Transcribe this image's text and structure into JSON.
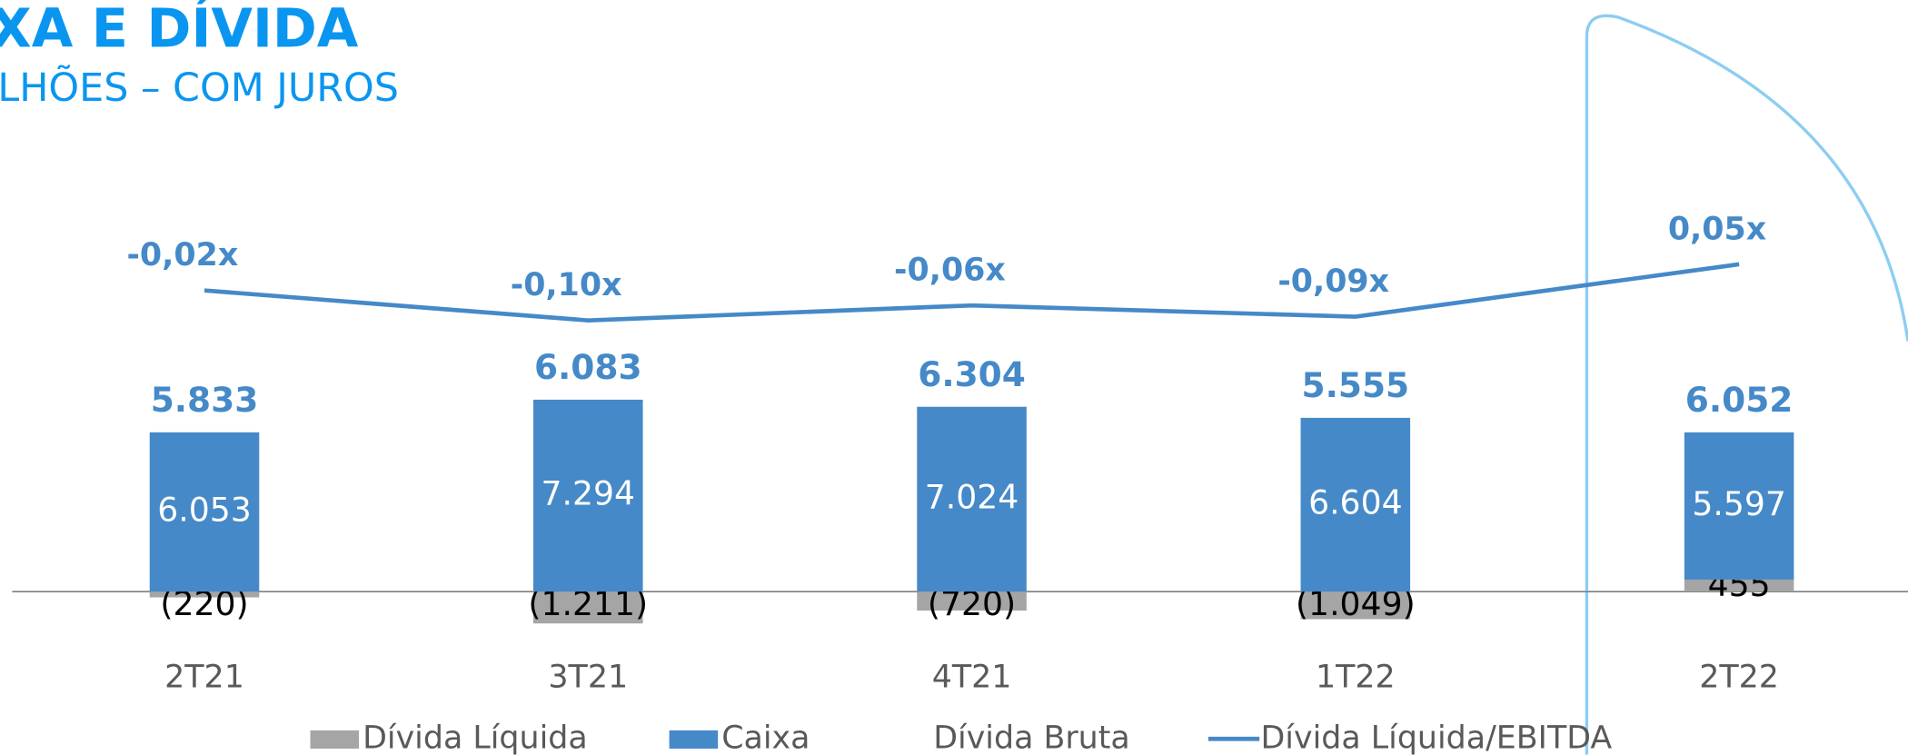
{
  "chart_data": {
    "type": "bar",
    "title": "XA E DÍVIDA",
    "subtitle": "LHÕES – COM JUROS",
    "categories": [
      "2T21",
      "3T21",
      "4T21",
      "1T22",
      "2T22"
    ],
    "stacked": true,
    "ylim": [
      -2500,
      16000
    ],
    "y2lim": [
      -1.0,
      0.3
    ],
    "series": [
      {
        "name": "Dívida Líquida",
        "type": "bar",
        "color": "#a5a5a5",
        "values": [
          -220,
          -1211,
          -720,
          -1049,
          455
        ],
        "value_labels": [
          "(220)",
          "(1.211)",
          "(720)",
          "(1.049)",
          "455"
        ]
      },
      {
        "name": "Caixa",
        "type": "bar",
        "color": "#4589c8",
        "values": [
          6053,
          7294,
          7024,
          6604,
          5597
        ],
        "value_labels": [
          "6.053",
          "7.294",
          "7.024",
          "6.604",
          "5.597"
        ]
      },
      {
        "name": "Dívida Bruta",
        "type": "total",
        "values": [
          5833,
          6083,
          6304,
          5555,
          6052
        ],
        "value_labels": [
          "5.833",
          "6.083",
          "6.304",
          "5.555",
          "6.052"
        ]
      },
      {
        "name": "Dívida Líquida/EBITDA",
        "type": "line",
        "axis": "y2",
        "color": "#4589c8",
        "values": [
          -0.02,
          -0.1,
          -0.06,
          -0.09,
          0.05
        ],
        "value_labels": [
          "-0,02x",
          "-0,10x",
          "-0,06x",
          "-0,09x",
          "0,05x"
        ]
      }
    ]
  }
}
